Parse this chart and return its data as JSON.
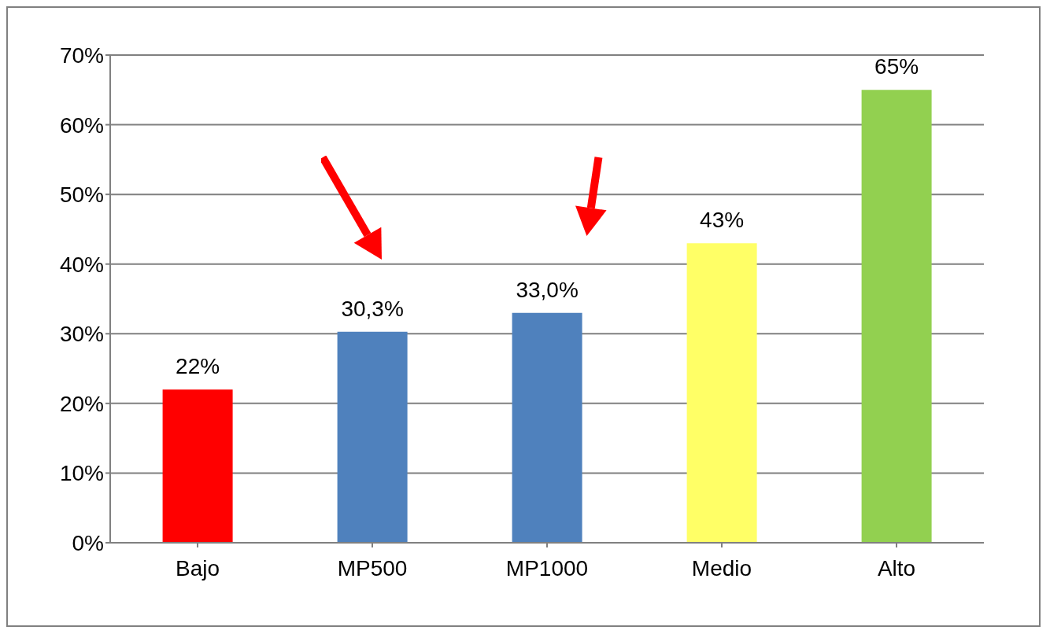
{
  "chart_data": {
    "type": "bar",
    "categories": [
      "Bajo",
      "MP500",
      "MP1000",
      "Medio",
      "Alto"
    ],
    "values": [
      22,
      30.3,
      33.0,
      43,
      65
    ],
    "colors": [
      "#ff0000",
      "#4f81bd",
      "#4f81bd",
      "#ffff66",
      "#92d050"
    ],
    "value_labels": [
      "22%",
      "30,3%",
      "33,0%",
      "43%",
      "65%"
    ],
    "ylim": [
      0,
      70
    ],
    "yticks": [
      {
        "value": 0,
        "label": "0%"
      },
      {
        "value": 10,
        "label": "10%"
      },
      {
        "value": 20,
        "label": "20%"
      },
      {
        "value": 30,
        "label": "30%"
      },
      {
        "value": 40,
        "label": "40%"
      },
      {
        "value": 50,
        "label": "50%"
      },
      {
        "value": 60,
        "label": "60%"
      },
      {
        "value": 70,
        "label": "70%"
      }
    ],
    "grid": "y"
  }
}
